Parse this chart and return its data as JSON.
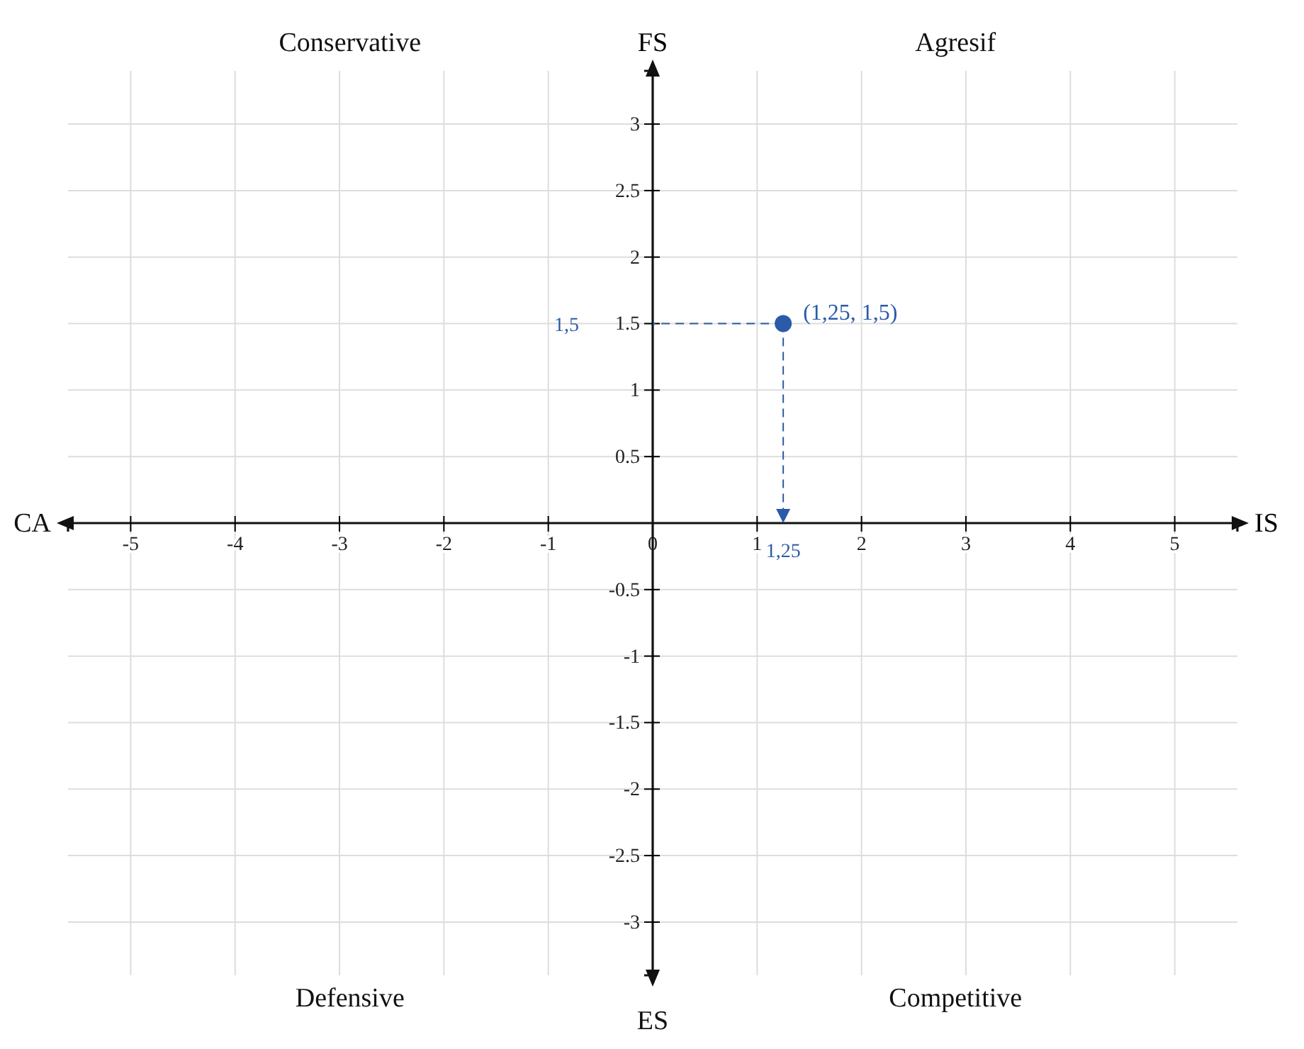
{
  "chart_data": {
    "type": "scatter",
    "xlabel": "IS",
    "ylabel": "FS",
    "xlim": [
      -5.6,
      5.6
    ],
    "ylim": [
      -3.4,
      3.4
    ],
    "xticks": [
      -5,
      -4,
      -3,
      -2,
      -1,
      0,
      1,
      2,
      3,
      4,
      5
    ],
    "yticks": [
      -3,
      -2.5,
      -2,
      -1.5,
      -1,
      -0.5,
      0.5,
      1,
      1.5,
      2,
      2.5,
      3
    ],
    "grid": true,
    "marker": "circle",
    "series": [
      {
        "color": "#2b5ba8",
        "x": [
          1.25
        ],
        "values": [
          1.5
        ],
        "value_labels": [
          "(1,25, 1,5)"
        ]
      }
    ],
    "annotations": [
      "1,5",
      "1,25",
      "CA",
      "ES",
      "Conservative",
      "Agresif",
      "Defensive",
      "Competitive"
    ]
  }
}
